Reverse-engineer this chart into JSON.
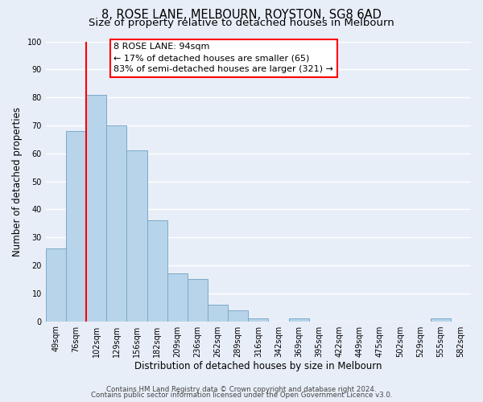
{
  "title_line1": "8, ROSE LANE, MELBOURN, ROYSTON, SG8 6AD",
  "title_line2": "Size of property relative to detached houses in Melbourn",
  "xlabel": "Distribution of detached houses by size in Melbourn",
  "ylabel": "Number of detached properties",
  "bar_labels": [
    "49sqm",
    "76sqm",
    "102sqm",
    "129sqm",
    "156sqm",
    "182sqm",
    "209sqm",
    "236sqm",
    "262sqm",
    "289sqm",
    "316sqm",
    "342sqm",
    "369sqm",
    "395sqm",
    "422sqm",
    "449sqm",
    "475sqm",
    "502sqm",
    "529sqm",
    "555sqm",
    "582sqm"
  ],
  "bar_values": [
    26,
    68,
    81,
    70,
    61,
    36,
    17,
    15,
    6,
    4,
    1,
    0,
    1,
    0,
    0,
    0,
    0,
    0,
    0,
    1,
    0
  ],
  "bar_color": "#b8d4ea",
  "bar_edge_color": "#7aaac8",
  "ylim": [
    0,
    100
  ],
  "annotation_line1": "8 ROSE LANE: 94sqm",
  "annotation_line2": "← 17% of detached houses are smaller (65)",
  "annotation_line3": "83% of semi-detached houses are larger (321) →",
  "footer_line1": "Contains HM Land Registry data © Crown copyright and database right 2024.",
  "footer_line2": "Contains public sector information licensed under the Open Government Licence v3.0.",
  "background_color": "#e8eef8",
  "plot_background_color": "#e8eef8",
  "grid_color": "#ffffff",
  "title_fontsize": 10.5,
  "subtitle_fontsize": 9.5,
  "axis_label_fontsize": 8.5,
  "tick_fontsize": 7,
  "annotation_fontsize": 8,
  "footer_fontsize": 6.2
}
